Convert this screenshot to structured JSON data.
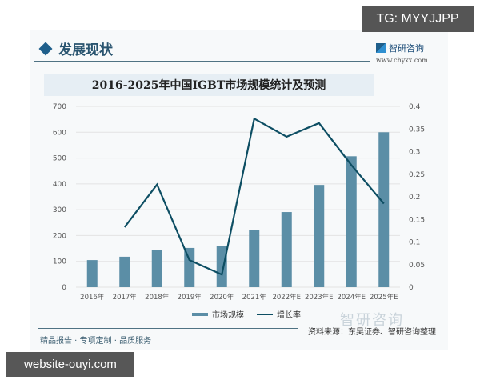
{
  "badges": {
    "tg": "TG: MYYJJPP",
    "site": "website-ouyi.com"
  },
  "header": {
    "section_title": "发展现状",
    "brand_name": "智研咨询",
    "brand_url": "www.chyxx.com"
  },
  "footer": {
    "slogan": "精品报告 · 专项定制 · 品质服务",
    "source": "资料来源：东吴证券、智研咨询整理",
    "watermark": "智研咨询"
  },
  "legend": {
    "bar_label": "市场规模",
    "line_label": "增长率"
  },
  "colors": {
    "bar": "#5b8ea6",
    "line": "#0d4e63",
    "grid": "#e3e3e3",
    "title_band": "#e6eef4"
  },
  "chart_data": {
    "type": "bar+line",
    "title": "2016-2025年中国IGBT市场规模统计及预测",
    "categories": [
      "2016年",
      "2017年",
      "2018年",
      "2019年",
      "2020年",
      "2021年",
      "2022年E",
      "2023年E",
      "2024年E",
      "2025年E"
    ],
    "series": [
      {
        "name": "市场规模",
        "type": "bar",
        "axis": "left",
        "values": [
          105,
          118,
          143,
          152,
          158,
          220,
          291,
          396,
          507,
          600
        ]
      },
      {
        "name": "增长率",
        "type": "line",
        "axis": "right",
        "values": [
          null,
          0.133,
          0.227,
          0.06,
          0.028,
          0.373,
          0.333,
          0.363,
          0.27,
          0.185
        ]
      }
    ],
    "left_axis": {
      "ylim": [
        0,
        700
      ],
      "ticks": [
        "0",
        "100",
        "200",
        "300",
        "400",
        "500",
        "600",
        "700"
      ]
    },
    "right_axis": {
      "ylim": [
        0,
        0.4
      ],
      "ticks": [
        "0",
        "0.05",
        "0.1",
        "0.15",
        "0.2",
        "0.25",
        "0.3",
        "0.35",
        "0.4"
      ]
    },
    "xlabel": "",
    "ylabel": "",
    "grid": true,
    "legend_position": "bottom"
  }
}
